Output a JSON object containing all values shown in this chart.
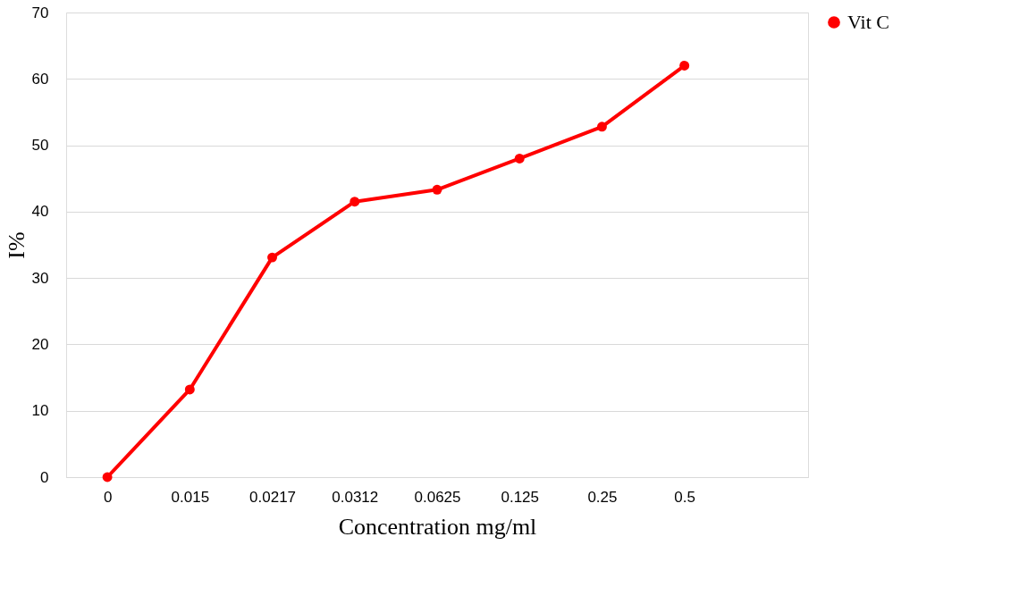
{
  "chart_data": {
    "type": "line",
    "xlabel": "Concentration mg/ml",
    "ylabel": "I%",
    "categories": [
      "0",
      "0.015",
      "0.0217",
      "0.0312",
      "0.0625",
      "0.125",
      "0.25",
      "0.5",
      null
    ],
    "series": [
      {
        "name": "Vit C",
        "color": "#ff0000",
        "values": [
          0,
          13.2,
          33.1,
          41.5,
          43.3,
          48.0,
          52.8,
          62.0,
          null
        ]
      }
    ],
    "ylim": [
      0,
      70
    ],
    "yticks": [
      0,
      10,
      20,
      30,
      40,
      50,
      60,
      70
    ],
    "grid": "y",
    "legend": "right",
    "marker": "circle",
    "line_style": "solid"
  }
}
